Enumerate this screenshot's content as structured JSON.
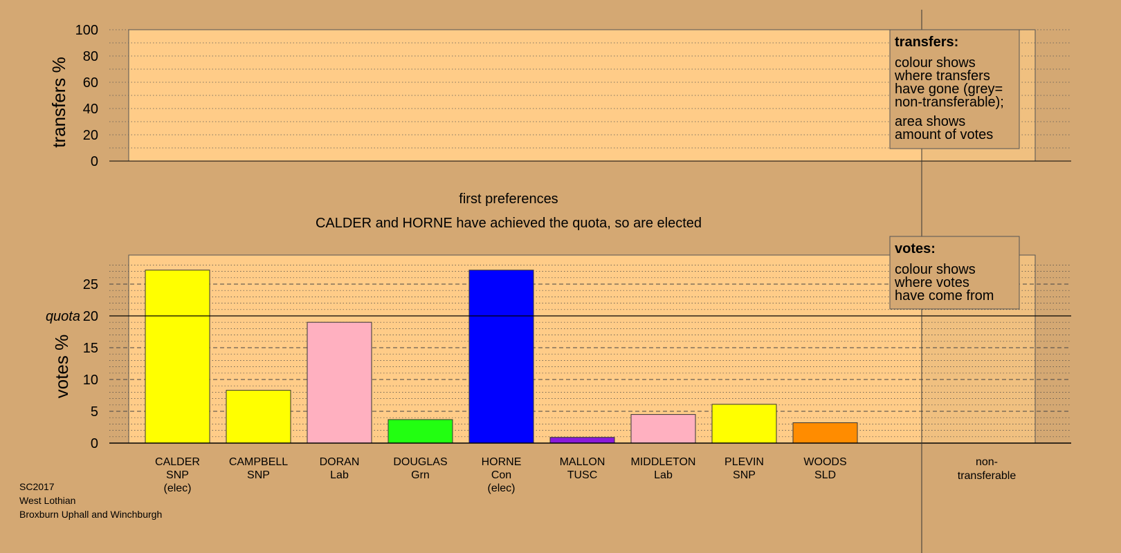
{
  "chart_data": [
    {
      "type": "bar",
      "title": "",
      "ylabel": "transfers %",
      "ylim": [
        0,
        100
      ],
      "yticks": [
        "0",
        "20",
        "40",
        "60",
        "80",
        "100"
      ],
      "categories": [],
      "values": [],
      "grid": true,
      "legend": {
        "title": "transfers:",
        "lines": [
          "colour shows",
          "where transfers",
          "have gone (grey=",
          "non-transferable);",
          "area shows",
          "amount of votes"
        ],
        "position": "top-right"
      }
    },
    {
      "type": "bar",
      "title": "first preferences",
      "subtitle": "CALDER and HORNE have achieved the quota, so are elected",
      "ylabel": "votes %",
      "ylim": [
        0,
        28
      ],
      "yticks": [
        "0",
        "5",
        "10",
        "15",
        "20",
        "25"
      ],
      "quota": 20,
      "quota_label": "quota",
      "grid": true,
      "categories": [
        [
          "CALDER",
          "SNP",
          "(elec)"
        ],
        [
          "CAMPBELL",
          "SNP"
        ],
        [
          "DORAN",
          "Lab"
        ],
        [
          "DOUGLAS",
          "Grn"
        ],
        [
          "HORNE",
          "Con",
          "(elec)"
        ],
        [
          "MALLON",
          "TUSC"
        ],
        [
          "MIDDLETON",
          "Lab"
        ],
        [
          "PLEVIN",
          "SNP"
        ],
        [
          "WOODS",
          "SLD"
        ]
      ],
      "values": [
        27.2,
        8.3,
        19.0,
        3.7,
        27.2,
        0.9,
        4.5,
        6.1,
        3.2
      ],
      "colors": [
        "#ffff00",
        "#ffff00",
        "#ffb0c0",
        "#22ff11",
        "#0000ff",
        "#8a1adb",
        "#ffb0c0",
        "#ffff00",
        "#ff8c00"
      ],
      "extra_category": [
        "non-",
        "transferable"
      ],
      "legend": {
        "title": "votes:",
        "lines": [
          "colour shows",
          "where votes",
          "have come from"
        ],
        "position": "top-right"
      }
    }
  ],
  "footer": [
    "SC2017",
    "West Lothian",
    "Broxburn Uphall and Winchburgh"
  ]
}
